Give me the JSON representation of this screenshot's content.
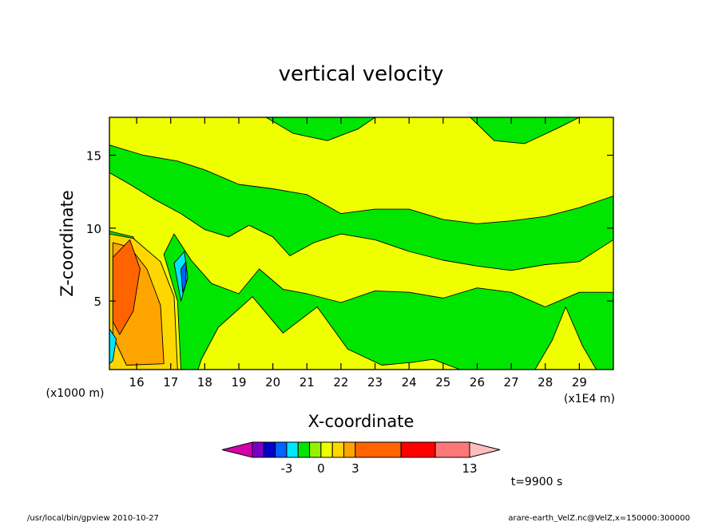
{
  "chart_data": {
    "type": "heatmap",
    "title": "vertical velocity",
    "xlabel": "X-coordinate",
    "ylabel": "Z-coordinate",
    "x_unit": "(x1E4 m)",
    "y_unit": "(x1000 m)",
    "xlim": [
      15.2,
      30.0
    ],
    "ylim": [
      0.3,
      17.6
    ],
    "x_ticks": [
      16,
      17,
      18,
      19,
      20,
      21,
      22,
      23,
      24,
      25,
      26,
      27,
      28,
      29
    ],
    "y_ticks": [
      5,
      10,
      15
    ],
    "time_label": "t=9900 s",
    "colorbar": {
      "levels": [
        -6,
        -5,
        -4,
        -3,
        -2,
        -1,
        0,
        1,
        2,
        3,
        7,
        10,
        13
      ],
      "tick_labels": [
        "-3",
        "0",
        "3",
        "13"
      ],
      "colors": [
        "#d400aa",
        "#7a00c8",
        "#0000c8",
        "#0064ff",
        "#00e6ff",
        "#00e600",
        "#96f000",
        "#f0ff00",
        "#ffd700",
        "#ffa500",
        "#ff6400",
        "#ff0000",
        "#ff7878",
        "#ffbebe"
      ]
    },
    "bands": {
      "background": "#f0ff00",
      "green": "#00e600",
      "strong_up": "#ff6400",
      "moderate_up": "#ffa500",
      "weak_up": "#ffd700",
      "down": "#00e6ff",
      "strong_down": "#0064ff"
    },
    "regions": {
      "green_upper_band": [
        [
          15.2,
          15.7
        ],
        [
          16.2,
          15.0
        ],
        [
          17.2,
          14.6
        ],
        [
          18.0,
          14.0
        ],
        [
          19.0,
          13.0
        ],
        [
          20.0,
          12.7
        ],
        [
          21.0,
          12.3
        ],
        [
          22.0,
          11.0
        ],
        [
          23.0,
          11.3
        ],
        [
          24.0,
          11.3
        ],
        [
          25.0,
          10.6
        ],
        [
          26.0,
          10.3
        ],
        [
          27.0,
          10.5
        ],
        [
          28.0,
          10.8
        ],
        [
          29.0,
          11.4
        ],
        [
          30.0,
          12.2
        ],
        [
          30.0,
          9.2
        ],
        [
          29.0,
          7.7
        ],
        [
          28.0,
          7.5
        ],
        [
          27.0,
          7.1
        ],
        [
          26.0,
          7.4
        ],
        [
          25.0,
          7.8
        ],
        [
          24.0,
          8.4
        ],
        [
          23.0,
          9.2
        ],
        [
          22.0,
          9.6
        ],
        [
          21.2,
          9.0
        ],
        [
          20.5,
          8.1
        ],
        [
          20.0,
          9.4
        ],
        [
          19.3,
          10.2
        ],
        [
          18.7,
          9.4
        ],
        [
          18.0,
          9.9
        ],
        [
          17.3,
          11.0
        ],
        [
          16.5,
          12.0
        ],
        [
          15.8,
          13.0
        ],
        [
          15.2,
          13.8
        ]
      ],
      "green_lower_band": [
        [
          17.1,
          9.6
        ],
        [
          17.6,
          7.8
        ],
        [
          18.2,
          6.2
        ],
        [
          19.0,
          5.5
        ],
        [
          19.6,
          7.2
        ],
        [
          20.3,
          5.8
        ],
        [
          21.0,
          5.5
        ],
        [
          22.0,
          4.9
        ],
        [
          23.0,
          5.7
        ],
        [
          24.0,
          5.6
        ],
        [
          25.0,
          5.2
        ],
        [
          26.0,
          5.9
        ],
        [
          27.0,
          5.6
        ],
        [
          28.0,
          4.6
        ],
        [
          29.0,
          5.6
        ],
        [
          30.0,
          5.6
        ],
        [
          30.0,
          0.3
        ],
        [
          29.5,
          0.3
        ],
        [
          29.1,
          1.9
        ],
        [
          28.6,
          4.6
        ],
        [
          28.2,
          2.3
        ],
        [
          27.7,
          0.3
        ],
        [
          25.5,
          0.3
        ],
        [
          24.7,
          1.0
        ],
        [
          24.1,
          0.8
        ],
        [
          23.2,
          0.6
        ],
        [
          22.2,
          1.7
        ],
        [
          21.3,
          4.6
        ],
        [
          20.3,
          2.8
        ],
        [
          19.4,
          5.3
        ],
        [
          18.4,
          3.2
        ],
        [
          17.9,
          1.0
        ],
        [
          17.8,
          0.3
        ],
        [
          17.3,
          0.3
        ],
        [
          17.2,
          5.0
        ],
        [
          16.8,
          8.2
        ]
      ],
      "green_top_right": [
        [
          25.8,
          17.6
        ],
        [
          26.5,
          16.0
        ],
        [
          27.4,
          15.8
        ],
        [
          28.4,
          16.9
        ],
        [
          29.0,
          17.6
        ]
      ],
      "green_top_mid": [
        [
          19.8,
          17.6
        ],
        [
          20.6,
          16.5
        ],
        [
          21.6,
          16.0
        ],
        [
          22.5,
          16.8
        ],
        [
          23.0,
          17.6
        ]
      ],
      "green_left_strip": [
        [
          15.2,
          9.8
        ],
        [
          15.9,
          9.4
        ],
        [
          16.2,
          7.8
        ],
        [
          15.6,
          5.5
        ],
        [
          15.2,
          4.8
        ]
      ],
      "weak_up_cell": [
        [
          15.2,
          9.6
        ],
        [
          15.9,
          9.3
        ],
        [
          16.7,
          7.7
        ],
        [
          17.1,
          5.3
        ],
        [
          17.2,
          0.3
        ],
        [
          15.2,
          0.3
        ]
      ],
      "moderate_up_cell": [
        [
          15.3,
          9.0
        ],
        [
          15.8,
          8.7
        ],
        [
          16.3,
          7.2
        ],
        [
          16.7,
          4.7
        ],
        [
          16.8,
          0.7
        ],
        [
          15.7,
          0.6
        ],
        [
          15.3,
          2.6
        ]
      ],
      "strong_up_cell": [
        [
          15.3,
          8.0
        ],
        [
          15.8,
          9.2
        ],
        [
          16.1,
          7.2
        ],
        [
          15.9,
          4.3
        ],
        [
          15.5,
          2.7
        ],
        [
          15.3,
          3.6
        ]
      ],
      "down_cell": [
        [
          17.1,
          7.6
        ],
        [
          17.4,
          8.4
        ],
        [
          17.5,
          6.6
        ],
        [
          17.3,
          5.0
        ]
      ],
      "strong_down_cell": [
        [
          17.3,
          7.2
        ],
        [
          17.45,
          7.7
        ],
        [
          17.45,
          6.2
        ],
        [
          17.35,
          5.6
        ]
      ],
      "down_cell_low": [
        [
          15.2,
          3.1
        ],
        [
          15.4,
          2.4
        ],
        [
          15.3,
          0.9
        ],
        [
          15.2,
          0.7
        ]
      ]
    }
  },
  "footer": {
    "left": "/usr/local/bin/gpview 2010-10-27",
    "right": "arare-earth_VelZ.nc@VelZ,x=150000:300000"
  }
}
